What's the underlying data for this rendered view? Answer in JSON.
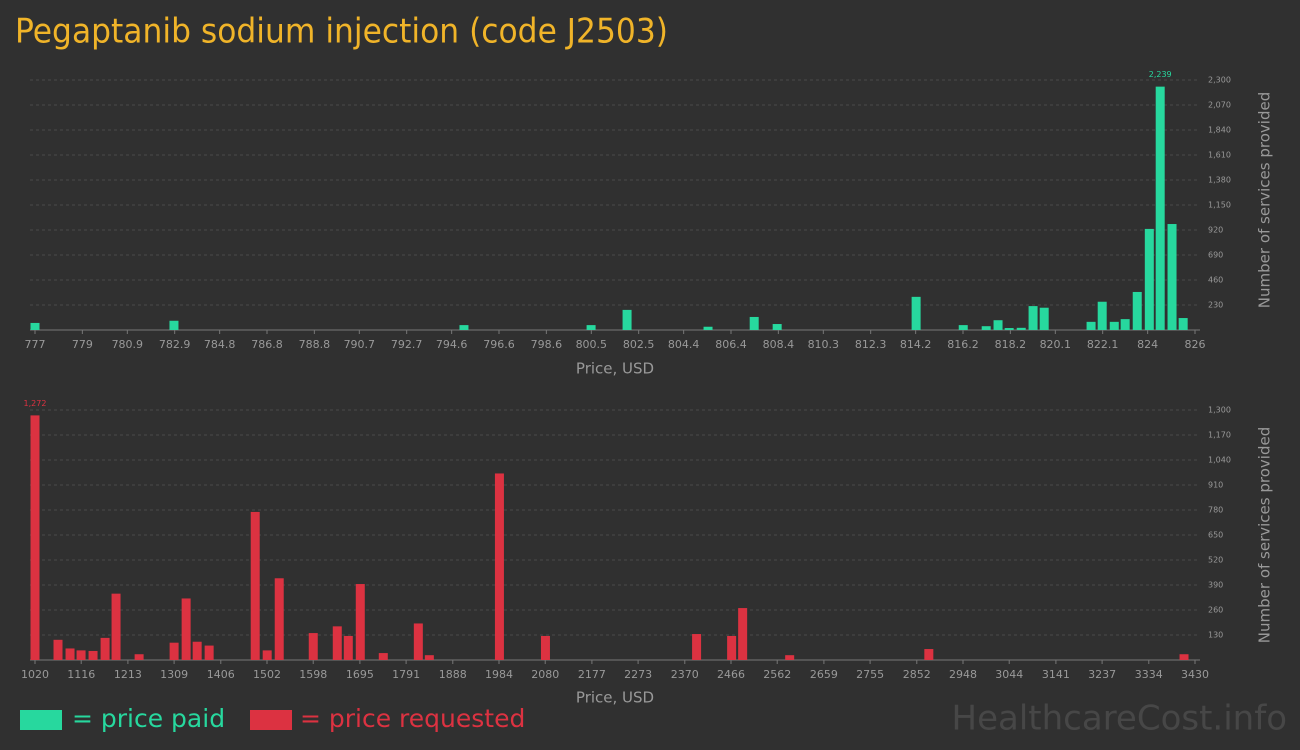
{
  "chart_data": [
    {
      "type": "bar",
      "title": "Pegaptanib sodium injection (code J2503)",
      "x_label": "Price, USD",
      "y_label": "Number of services provided",
      "xlim": [
        777,
        826
      ],
      "xticks": [
        777,
        779,
        780.9,
        782.9,
        784.8,
        786.8,
        788.8,
        790.7,
        792.7,
        794.6,
        796.6,
        798.6,
        800.5,
        802.5,
        804.4,
        806.4,
        808.4,
        810.3,
        812.3,
        814.2,
        816.2,
        818.2,
        820.1,
        822.1,
        824,
        826
      ],
      "ylim": [
        0,
        2300
      ],
      "yticks": [
        230,
        460,
        690,
        920,
        {
          "value": 1150,
          "label": "1,150"
        },
        {
          "value": 1380,
          "label": "1,380"
        },
        {
          "value": 1610,
          "label": "1,610"
        },
        {
          "value": 1840,
          "label": "1,840"
        },
        {
          "value": 2070,
          "label": "2,070"
        },
        {
          "value": 2300,
          "label": "2,300"
        }
      ],
      "grid": true,
      "x": [
        777.0,
        782.87,
        795.12,
        800.49,
        802.01,
        805.43,
        807.38,
        808.35,
        814.22,
        816.21,
        817.18,
        817.68,
        818.15,
        818.66,
        819.16,
        819.63,
        821.61,
        822.08,
        822.59,
        823.05,
        823.56,
        824.07,
        824.53,
        825.03,
        825.5
      ],
      "series": [
        {
          "name": "= price paid",
          "color": "#27d89e",
          "values": [
            65,
            85,
            45,
            45,
            185,
            30,
            120,
            55,
            305,
            45,
            35,
            90,
            18,
            20,
            220,
            205,
            75,
            260,
            75,
            100,
            350,
            930,
            2239,
            975,
            110
          ],
          "value_labels": [
            null,
            null,
            null,
            null,
            null,
            null,
            null,
            null,
            null,
            null,
            null,
            null,
            null,
            null,
            null,
            null,
            null,
            null,
            null,
            null,
            null,
            null,
            "2,239",
            null,
            null
          ]
        }
      ]
    },
    {
      "type": "bar",
      "x_label": "Price, USD",
      "y_label": "Number of services provided",
      "xlim": [
        1020,
        3430
      ],
      "xticks": [
        1020,
        1116,
        1213,
        1309,
        1406,
        1502,
        1598,
        1695,
        1791,
        1888,
        1984,
        2080,
        2177,
        2273,
        2370,
        2466,
        2562,
        2659,
        2755,
        2852,
        2948,
        3044,
        3141,
        3237,
        3334,
        3430
      ],
      "ylim": [
        0,
        1300
      ],
      "yticks": [
        130,
        260,
        390,
        520,
        650,
        780,
        910,
        {
          "value": 1040,
          "label": "1,040"
        },
        {
          "value": 1170,
          "label": "1,170"
        },
        {
          "value": 1300,
          "label": "1,300"
        }
      ],
      "grid": true,
      "x": [
        1020,
        1067.8,
        1092.8,
        1115.7,
        1140.6,
        1165.6,
        1188.4,
        1236.3,
        1309.0,
        1334.0,
        1356.9,
        1381.8,
        1477.5,
        1502.4,
        1527.4,
        1598.1,
        1648.0,
        1670.9,
        1695.8,
        1743.6,
        1816.4,
        1839.3,
        1984.9,
        2080.5,
        2394.5,
        2467.3,
        2490.2,
        2587.9,
        2877.0,
        3407.2
      ],
      "series": [
        {
          "name": "= price requested",
          "color": "#dc3241",
          "values": [
            1272,
            105,
            60,
            50,
            47,
            115,
            345,
            30,
            90,
            320,
            95,
            75,
            770,
            50,
            425,
            140,
            175,
            125,
            395,
            36,
            190,
            25,
            970,
            125,
            135,
            125,
            270,
            25,
            57,
            30
          ],
          "value_labels": [
            "1,272",
            null,
            null,
            null,
            null,
            null,
            null,
            null,
            null,
            null,
            null,
            null,
            null,
            null,
            null,
            null,
            null,
            null,
            null,
            null,
            null,
            null,
            null,
            null,
            null,
            null,
            null,
            null,
            null,
            null
          ]
        }
      ]
    }
  ],
  "watermark": "HealthcareCost.info"
}
